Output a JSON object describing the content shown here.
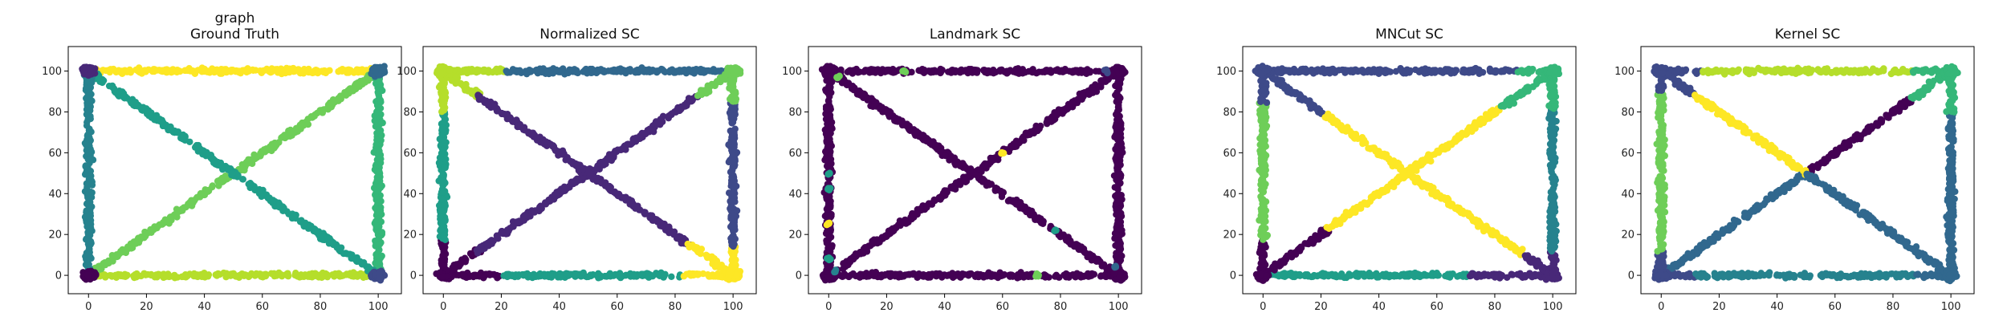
{
  "palette": {
    "c0": "#440154",
    "c1": "#482878",
    "c2": "#3e4a89",
    "c3": "#31688e",
    "c4": "#26828e",
    "c5": "#1f9e89",
    "c6": "#35b779",
    "c7": "#6ece58",
    "c8": "#b5de2b",
    "c9": "#fde725"
  },
  "chart_data": [
    {
      "type": "scatter",
      "title": "graph\nGround Truth",
      "xlim": [
        -7,
        108
      ],
      "ylim": [
        -9,
        112
      ],
      "xticks": [
        0,
        20,
        40,
        60,
        80,
        100
      ],
      "yticks": [
        0,
        20,
        40,
        60,
        80,
        100
      ],
      "segments": [
        {
          "from": [
            0,
            100
          ],
          "to": [
            100,
            100
          ],
          "color": "c9"
        },
        {
          "from": [
            0,
            0
          ],
          "to": [
            100,
            0
          ],
          "color": "c8"
        },
        {
          "from": [
            0,
            0
          ],
          "to": [
            100,
            100
          ],
          "color": "c7"
        },
        {
          "from": [
            100,
            0
          ],
          "to": [
            100,
            100
          ],
          "color": "c6"
        },
        {
          "from": [
            0,
            100
          ],
          "to": [
            100,
            0
          ],
          "color": "c5"
        },
        {
          "from": [
            0,
            0
          ],
          "to": [
            0,
            100
          ],
          "color": "c4"
        }
      ],
      "blobs": [
        {
          "center": [
            0,
            100
          ],
          "color": "c1"
        },
        {
          "center": [
            100,
            100
          ],
          "color": "c3"
        },
        {
          "center": [
            0,
            0
          ],
          "color": "c0"
        },
        {
          "center": [
            100,
            0
          ],
          "color": "c2"
        }
      ]
    },
    {
      "type": "scatter",
      "title": "Normalized SC",
      "xlim": [
        -7,
        108
      ],
      "ylim": [
        -9,
        112
      ],
      "xticks": [
        0,
        20,
        40,
        60,
        80,
        100
      ],
      "yticks": [
        0,
        20,
        40,
        60,
        80,
        100
      ],
      "segments": [
        {
          "from": [
            0,
            100
          ],
          "to": [
            22,
            100
          ],
          "color": "c8"
        },
        {
          "from": [
            22,
            100
          ],
          "to": [
            100,
            100
          ],
          "color": "c3"
        },
        {
          "from": [
            0,
            0
          ],
          "to": [
            20,
            0
          ],
          "color": "c0"
        },
        {
          "from": [
            20,
            0
          ],
          "to": [
            82,
            0
          ],
          "color": "c5"
        },
        {
          "from": [
            82,
            0
          ],
          "to": [
            100,
            0
          ],
          "color": "c9"
        },
        {
          "from": [
            0,
            0
          ],
          "to": [
            12,
            12
          ],
          "color": "c0"
        },
        {
          "from": [
            12,
            12
          ],
          "to": [
            88,
            88
          ],
          "color": "c1"
        },
        {
          "from": [
            88,
            88
          ],
          "to": [
            100,
            100
          ],
          "color": "c7"
        },
        {
          "from": [
            0,
            100
          ],
          "to": [
            12,
            88
          ],
          "color": "c8"
        },
        {
          "from": [
            12,
            88
          ],
          "to": [
            85,
            15
          ],
          "color": "c1"
        },
        {
          "from": [
            85,
            15
          ],
          "to": [
            100,
            0
          ],
          "color": "c9"
        },
        {
          "from": [
            0,
            0
          ],
          "to": [
            0,
            18
          ],
          "color": "c0"
        },
        {
          "from": [
            0,
            18
          ],
          "to": [
            0,
            80
          ],
          "color": "c5"
        },
        {
          "from": [
            0,
            80
          ],
          "to": [
            0,
            100
          ],
          "color": "c8"
        },
        {
          "from": [
            100,
            0
          ],
          "to": [
            100,
            15
          ],
          "color": "c9"
        },
        {
          "from": [
            100,
            15
          ],
          "to": [
            100,
            85
          ],
          "color": "c2"
        },
        {
          "from": [
            100,
            85
          ],
          "to": [
            100,
            100
          ],
          "color": "c7"
        }
      ],
      "blobs": [
        {
          "center": [
            0,
            100
          ],
          "color": "c8"
        },
        {
          "center": [
            100,
            100
          ],
          "color": "c7"
        },
        {
          "center": [
            0,
            0
          ],
          "color": "c0"
        },
        {
          "center": [
            100,
            0
          ],
          "color": "c9"
        }
      ]
    },
    {
      "type": "scatter",
      "title": "Landmark SC",
      "xlim": [
        -7,
        108
      ],
      "ylim": [
        -9,
        112
      ],
      "xticks": [
        0,
        20,
        40,
        60,
        80,
        100
      ],
      "yticks": [
        0,
        20,
        40,
        60,
        80,
        100
      ],
      "segments": [
        {
          "from": [
            0,
            100
          ],
          "to": [
            100,
            100
          ],
          "color": "c0"
        },
        {
          "from": [
            0,
            0
          ],
          "to": [
            100,
            0
          ],
          "color": "c0"
        },
        {
          "from": [
            0,
            0
          ],
          "to": [
            100,
            100
          ],
          "color": "c0"
        },
        {
          "from": [
            0,
            100
          ],
          "to": [
            100,
            0
          ],
          "color": "c0"
        },
        {
          "from": [
            0,
            0
          ],
          "to": [
            0,
            100
          ],
          "color": "c0"
        },
        {
          "from": [
            100,
            0
          ],
          "to": [
            100,
            100
          ],
          "color": "c0"
        }
      ],
      "blobs": [
        {
          "center": [
            0,
            100
          ],
          "color": "c0"
        },
        {
          "center": [
            100,
            100
          ],
          "color": "c0"
        },
        {
          "center": [
            0,
            0
          ],
          "color": "c0"
        },
        {
          "center": [
            100,
            0
          ],
          "color": "c0"
        }
      ],
      "specks": [
        {
          "at": [
            26,
            100
          ],
          "color": "c7"
        },
        {
          "at": [
            3,
            97
          ],
          "color": "c7"
        },
        {
          "at": [
            60,
            60
          ],
          "color": "c9"
        },
        {
          "at": [
            0,
            50
          ],
          "color": "c5"
        },
        {
          "at": [
            0,
            42
          ],
          "color": "c5"
        },
        {
          "at": [
            0,
            25
          ],
          "color": "c9"
        },
        {
          "at": [
            0,
            8
          ],
          "color": "c5"
        },
        {
          "at": [
            72,
            0
          ],
          "color": "c7"
        },
        {
          "at": [
            78,
            22
          ],
          "color": "c5"
        },
        {
          "at": [
            96,
            100
          ],
          "color": "c2"
        },
        {
          "at": [
            99,
            4
          ],
          "color": "c3"
        },
        {
          "at": [
            2,
            2
          ],
          "color": "c4"
        }
      ]
    },
    {
      "type": "scatter",
      "title": "MNCut SC",
      "xlim": [
        -7,
        108
      ],
      "ylim": [
        -9,
        112
      ],
      "xticks": [
        0,
        20,
        40,
        60,
        80,
        100
      ],
      "yticks": [
        0,
        20,
        40,
        60,
        80,
        100
      ],
      "segments": [
        {
          "from": [
            0,
            100
          ],
          "to": [
            88,
            100
          ],
          "color": "c2"
        },
        {
          "from": [
            88,
            100
          ],
          "to": [
            100,
            100
          ],
          "color": "c6"
        },
        {
          "from": [
            0,
            0
          ],
          "to": [
            72,
            0
          ],
          "color": "c5"
        },
        {
          "from": [
            72,
            0
          ],
          "to": [
            100,
            0
          ],
          "color": "c1"
        },
        {
          "from": [
            0,
            0
          ],
          "to": [
            22,
            22
          ],
          "color": "c0"
        },
        {
          "from": [
            22,
            22
          ],
          "to": [
            82,
            82
          ],
          "color": "c9"
        },
        {
          "from": [
            82,
            82
          ],
          "to": [
            100,
            100
          ],
          "color": "c6"
        },
        {
          "from": [
            0,
            100
          ],
          "to": [
            22,
            78
          ],
          "color": "c2"
        },
        {
          "from": [
            22,
            78
          ],
          "to": [
            90,
            10
          ],
          "color": "c9"
        },
        {
          "from": [
            90,
            10
          ],
          "to": [
            100,
            0
          ],
          "color": "c1"
        },
        {
          "from": [
            0,
            0
          ],
          "to": [
            0,
            18
          ],
          "color": "c0"
        },
        {
          "from": [
            0,
            18
          ],
          "to": [
            0,
            85
          ],
          "color": "c7"
        },
        {
          "from": [
            0,
            85
          ],
          "to": [
            0,
            100
          ],
          "color": "c2"
        },
        {
          "from": [
            100,
            0
          ],
          "to": [
            100,
            12
          ],
          "color": "c1"
        },
        {
          "from": [
            100,
            12
          ],
          "to": [
            100,
            82
          ],
          "color": "c4"
        },
        {
          "from": [
            100,
            82
          ],
          "to": [
            100,
            100
          ],
          "color": "c6"
        }
      ],
      "blobs": [
        {
          "center": [
            0,
            100
          ],
          "color": "c2"
        },
        {
          "center": [
            100,
            100
          ],
          "color": "c6"
        },
        {
          "center": [
            0,
            0
          ],
          "color": "c0"
        },
        {
          "center": [
            100,
            0
          ],
          "color": "c1"
        }
      ]
    },
    {
      "type": "scatter",
      "title": "Kernel SC",
      "xlim": [
        -7,
        108
      ],
      "ylim": [
        -9,
        112
      ],
      "xticks": [
        0,
        20,
        40,
        60,
        80,
        100
      ],
      "yticks": [
        0,
        20,
        40,
        60,
        80,
        100
      ],
      "segments": [
        {
          "from": [
            0,
            100
          ],
          "to": [
            14,
            100
          ],
          "color": "c2"
        },
        {
          "from": [
            14,
            100
          ],
          "to": [
            86,
            100
          ],
          "color": "c8"
        },
        {
          "from": [
            86,
            100
          ],
          "to": [
            100,
            100
          ],
          "color": "c6"
        },
        {
          "from": [
            0,
            0
          ],
          "to": [
            12,
            0
          ],
          "color": "c2"
        },
        {
          "from": [
            12,
            0
          ],
          "to": [
            88,
            0
          ],
          "color": "c4"
        },
        {
          "from": [
            88,
            0
          ],
          "to": [
            100,
            0
          ],
          "color": "c3"
        },
        {
          "from": [
            0,
            0
          ],
          "to": [
            50,
            50
          ],
          "color": "c3"
        },
        {
          "from": [
            50,
            50
          ],
          "to": [
            86,
            86
          ],
          "color": "c0"
        },
        {
          "from": [
            86,
            86
          ],
          "to": [
            100,
            100
          ],
          "color": "c6"
        },
        {
          "from": [
            0,
            100
          ],
          "to": [
            12,
            88
          ],
          "color": "c2"
        },
        {
          "from": [
            12,
            88
          ],
          "to": [
            50,
            50
          ],
          "color": "c9"
        },
        {
          "from": [
            50,
            50
          ],
          "to": [
            100,
            0
          ],
          "color": "c3"
        },
        {
          "from": [
            0,
            0
          ],
          "to": [
            0,
            12
          ],
          "color": "c2"
        },
        {
          "from": [
            0,
            12
          ],
          "to": [
            0,
            90
          ],
          "color": "c7"
        },
        {
          "from": [
            0,
            90
          ],
          "to": [
            0,
            100
          ],
          "color": "c2"
        },
        {
          "from": [
            100,
            0
          ],
          "to": [
            100,
            80
          ],
          "color": "c3"
        },
        {
          "from": [
            100,
            80
          ],
          "to": [
            100,
            100
          ],
          "color": "c6"
        }
      ],
      "blobs": [
        {
          "center": [
            0,
            100
          ],
          "color": "c2"
        },
        {
          "center": [
            100,
            100
          ],
          "color": "c6"
        },
        {
          "center": [
            0,
            0
          ],
          "color": "c2"
        },
        {
          "center": [
            100,
            0
          ],
          "color": "c3"
        }
      ]
    }
  ]
}
